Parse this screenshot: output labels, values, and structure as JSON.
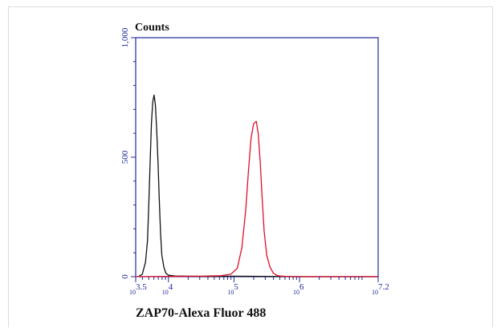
{
  "chart_data": {
    "type": "line",
    "y_title": "Counts",
    "x_title": "ZAP70-Alexa Fluor 488",
    "x_scale": "log10",
    "x_range": [
      3.5,
      7.2
    ],
    "y_range": [
      0,
      1000
    ],
    "y_ticks": [
      {
        "value": 0,
        "label": "0"
      },
      {
        "value": 500,
        "label": "500"
      },
      {
        "value": 1000,
        "label": "1,000"
      }
    ],
    "x_ticks": [
      {
        "exp": 3.5,
        "base": "10",
        "sup": "3.5"
      },
      {
        "exp": 4,
        "base": "10",
        "sup": "4"
      },
      {
        "exp": 5,
        "base": "10",
        "sup": "5"
      },
      {
        "exp": 6,
        "base": "10",
        "sup": "6"
      },
      {
        "exp": 7.2,
        "base": "10",
        "sup": "7.2"
      }
    ],
    "grid": false,
    "series": [
      {
        "color": "#111111",
        "x": [
          3.55,
          3.6,
          3.65,
          3.68,
          3.7,
          3.72,
          3.74,
          3.76,
          3.78,
          3.8,
          3.82,
          3.84,
          3.86,
          3.88,
          3.9,
          3.93,
          3.96,
          4.0,
          4.1,
          4.3,
          4.6,
          5.0,
          5.5,
          6.0,
          6.5,
          7.0,
          7.2
        ],
        "y": [
          2,
          10,
          60,
          150,
          300,
          480,
          640,
          730,
          760,
          720,
          620,
          480,
          320,
          180,
          90,
          40,
          15,
          6,
          3,
          2,
          1,
          2,
          1,
          0,
          0,
          0,
          0
        ]
      },
      {
        "color": "#e0102a",
        "x": [
          3.5,
          4.0,
          4.5,
          4.8,
          4.95,
          5.05,
          5.12,
          5.18,
          5.22,
          5.26,
          5.3,
          5.34,
          5.37,
          5.4,
          5.43,
          5.46,
          5.5,
          5.55,
          5.6,
          5.65,
          5.7,
          5.8,
          6.0,
          6.5,
          7.2
        ],
        "y": [
          0,
          1,
          2,
          4,
          10,
          35,
          120,
          280,
          440,
          580,
          640,
          650,
          600,
          480,
          330,
          190,
          90,
          40,
          15,
          6,
          3,
          1,
          0,
          0,
          0
        ]
      }
    ]
  }
}
